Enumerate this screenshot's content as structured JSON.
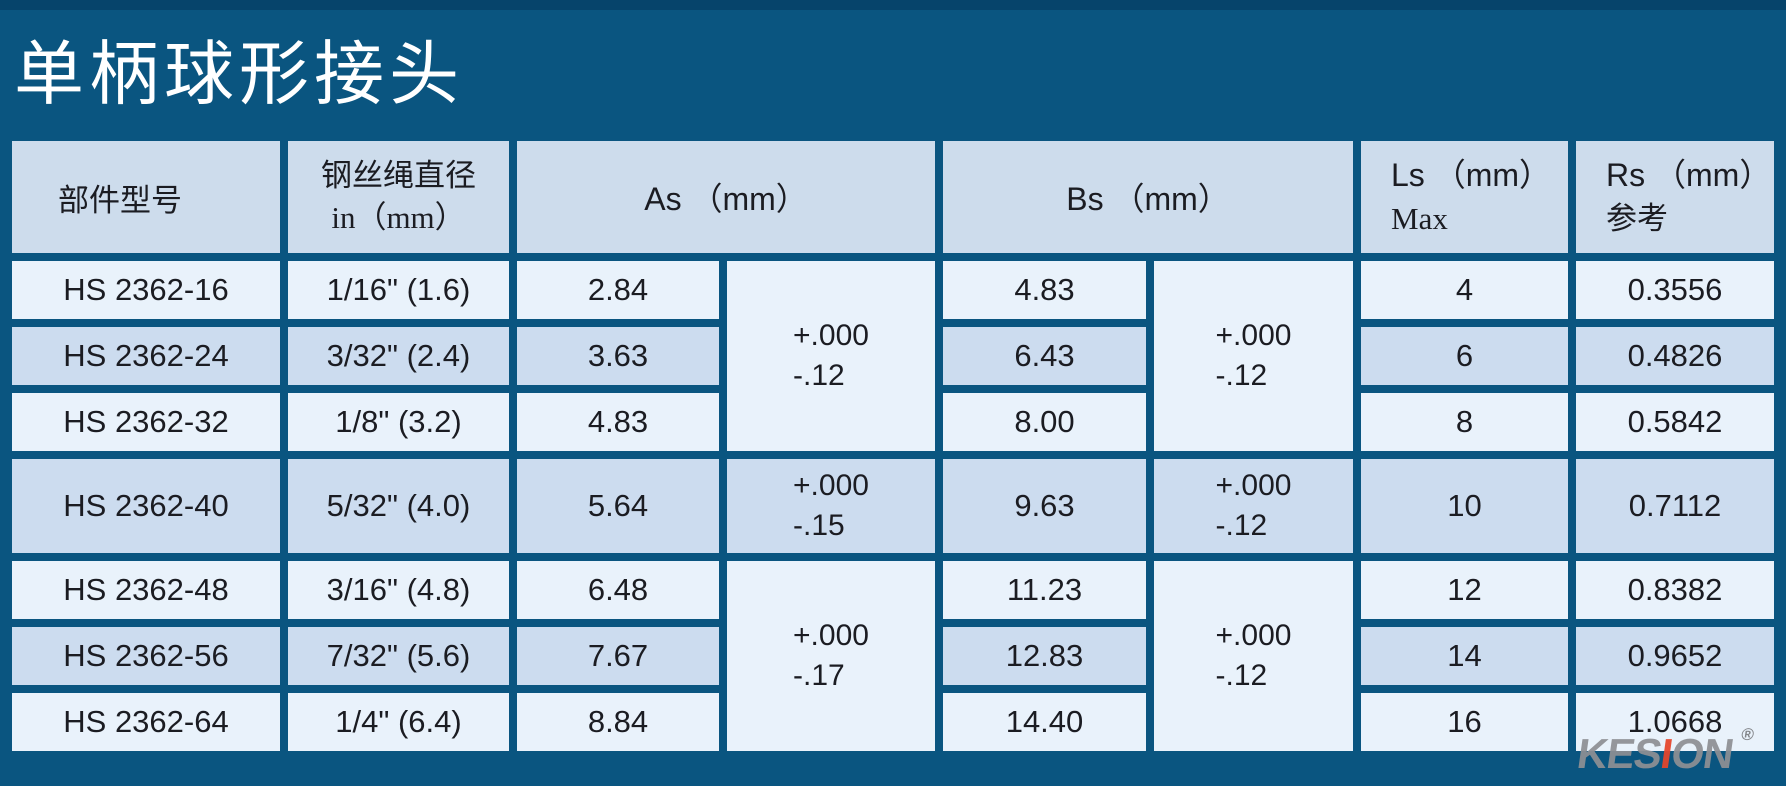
{
  "page": {
    "title": "单柄球形接头"
  },
  "colors": {
    "background": "#0a5580",
    "top_stripe": "#06446b",
    "header_cell": "#cddcec",
    "row_light": "#e9f2fb",
    "row_mid": "#ccdcef",
    "title_text": "#ffffff",
    "cell_text": "#1b1c22",
    "watermark_gray": "#8e9094",
    "watermark_red": "#e6452b"
  },
  "table": {
    "headers": {
      "part_no": "部件型号",
      "wire_dia_line1": "钢丝绳直径",
      "wire_dia_line2": "in（mm）",
      "as": "As （mm）",
      "bs": "Bs （mm）",
      "ls_line1": "Ls （mm）",
      "ls_line2": "Max",
      "rs_line1": "Rs （mm）",
      "rs_line2": "参考"
    },
    "rows": [
      {
        "model": "HS 2362-16",
        "diameter": "1/16\" (1.6)",
        "as": "2.84",
        "bs": "4.83",
        "ls": "4",
        "rs": "0.3556"
      },
      {
        "model": "HS 2362-24",
        "diameter": "3/32\" (2.4)",
        "as": "3.63",
        "bs": "6.43",
        "ls": "6",
        "rs": "0.4826"
      },
      {
        "model": "HS 2362-32",
        "diameter": "1/8\" (3.2)",
        "as": "4.83",
        "bs": "8.00",
        "ls": "8",
        "rs": "0.5842"
      },
      {
        "model": "HS 2362-40",
        "diameter": "5/32\" (4.0)",
        "as": "5.64",
        "bs": "9.63",
        "ls": "10",
        "rs": "0.7112"
      },
      {
        "model": "HS 2362-48",
        "diameter": "3/16\" (4.8)",
        "as": "6.48",
        "bs": "11.23",
        "ls": "12",
        "rs": "0.8382"
      },
      {
        "model": "HS 2362-56",
        "diameter": "7/32\" (5.6)",
        "as": "7.67",
        "bs": "12.83",
        "ls": "14",
        "rs": "0.9652"
      },
      {
        "model": "HS 2362-64",
        "diameter": "1/4\" (6.4)",
        "as": "8.84",
        "bs": "14.40",
        "ls": "16",
        "rs": "1.0668"
      }
    ],
    "tolerances": {
      "as_16_32": [
        "+.000",
        "-.12"
      ],
      "as_40": [
        "+.000",
        "-.15"
      ],
      "as_48_64": [
        "+.000",
        "-.17"
      ],
      "bs_16_32": [
        "+.000",
        "-.12"
      ],
      "bs_40": [
        "+.000",
        "-.12"
      ],
      "bs_48_64": [
        "+.000",
        "-.12"
      ]
    }
  },
  "watermark": {
    "left": "KES",
    "i": "I",
    "right": "ON",
    "registered": "®"
  }
}
